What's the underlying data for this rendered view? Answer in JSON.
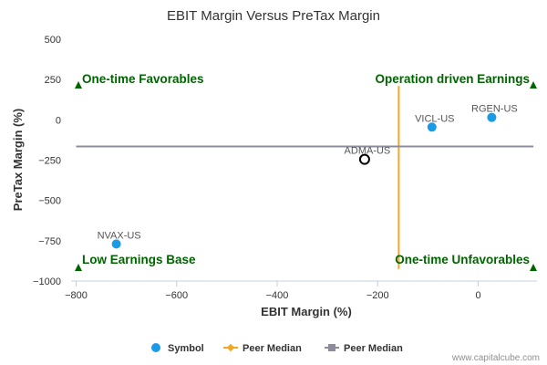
{
  "chart_data": {
    "type": "scatter",
    "title": "EBIT Margin Versus PreTax Margin",
    "xlabel": "EBIT Margin (%)",
    "ylabel": "PreTax Margin (%)",
    "xlim": [
      -810,
      117
    ],
    "ylim": [
      -1000,
      500
    ],
    "xticks": [
      -800,
      -600,
      -400,
      -200,
      0
    ],
    "yticks": [
      500,
      250,
      0,
      -250,
      -500,
      -750,
      -1000
    ],
    "xtick_labels": [
      "−800",
      "−600",
      "−400",
      "−200",
      "0"
    ],
    "ytick_labels": [
      "500",
      "250",
      "0",
      "−250",
      "−500",
      "−750",
      "−1000"
    ],
    "grid": false,
    "series": [
      {
        "name": "Symbol",
        "color": "#1a9be8",
        "points": [
          {
            "label": "RGEN-US",
            "x": 27,
            "y": 15
          },
          {
            "label": "VICL-US",
            "x": -92,
            "y": -45
          },
          {
            "label": "NVAX-US",
            "x": -720,
            "y": -770
          }
        ]
      },
      {
        "name": "Subject",
        "color": "#000000",
        "points": [
          {
            "label": "ADMA-US",
            "x": -226,
            "y": -245
          }
        ]
      }
    ],
    "peer_median_x": {
      "name": "Peer Median",
      "value": -158,
      "color": "#f5a623",
      "y_range": [
        -925,
        210
      ]
    },
    "peer_median_y": {
      "name": "Peer Median",
      "value": -165,
      "color": "#8c8c9c",
      "x_range": [
        -800,
        110
      ]
    },
    "quadrants": [
      {
        "label": "One-time Favorables",
        "corner": "top-left",
        "color": "#006400"
      },
      {
        "label": "Operation driven Earnings",
        "corner": "top-right",
        "color": "#006400"
      },
      {
        "label": "Low Earnings Base",
        "corner": "bottom-left",
        "color": "#006400"
      },
      {
        "label": "One-time Unfavorables",
        "corner": "bottom-right",
        "color": "#006400"
      }
    ],
    "legend": {
      "position": "bottom",
      "items": [
        {
          "label": "Symbol",
          "marker": "circle",
          "color": "#1a9be8"
        },
        {
          "label": "Peer Median",
          "marker": "line-diamond",
          "color": "#f5a623"
        },
        {
          "label": "Peer Median",
          "marker": "line-square",
          "color": "#8c8c9c"
        }
      ]
    }
  },
  "credit": "www.capitalcube.com"
}
